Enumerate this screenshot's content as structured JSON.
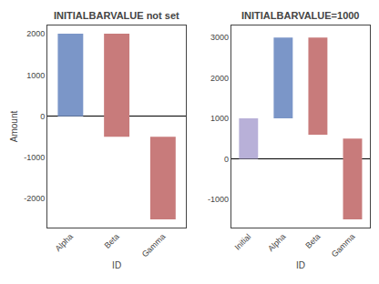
{
  "chart_data": [
    {
      "type": "bar",
      "title": "INITIALBARVALUE not set",
      "categories": [
        "Alpha",
        "Beta",
        "Gamma"
      ],
      "values": [
        [
          0,
          2000
        ],
        [
          -500,
          2000
        ],
        [
          -2500,
          -500
        ]
      ],
      "colors": [
        "#7b96c8",
        "#c87b7b",
        "#c87b7b"
      ],
      "ylim": [
        -2700,
        2200
      ],
      "yticks": [
        -2000,
        -1000,
        0,
        1000,
        2000
      ],
      "xlabel": "ID",
      "ylabel": "Amount",
      "grid": false
    },
    {
      "type": "bar",
      "title": "INITIALBARVALUE=1000",
      "categories": [
        "Initial",
        "Alpha",
        "Beta",
        "Gamma"
      ],
      "values": [
        [
          0,
          1000
        ],
        [
          1000,
          3000
        ],
        [
          600,
          3000
        ],
        [
          -1500,
          500
        ]
      ],
      "colors": [
        "#b8b0d8",
        "#7b96c8",
        "#c87b7b",
        "#c87b7b"
      ],
      "ylim": [
        -1700,
        3300
      ],
      "yticks": [
        -1000,
        0,
        1000,
        2000,
        3000
      ],
      "xlabel": "ID",
      "grid": false
    }
  ]
}
